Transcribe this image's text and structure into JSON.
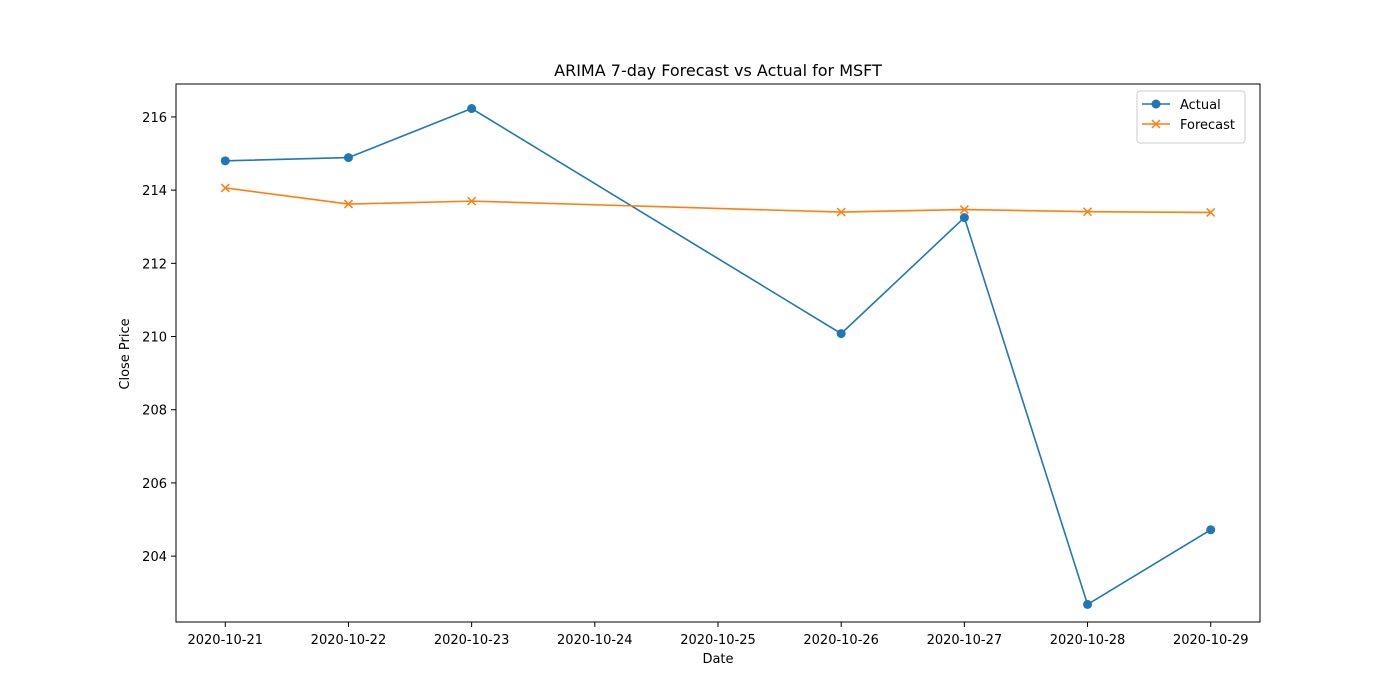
{
  "chart_data": {
    "type": "line",
    "title": "ARIMA 7-day Forecast vs Actual for MSFT",
    "xlabel": "Date",
    "ylabel": "Close Price",
    "x_ticks": [
      "2020-10-21",
      "2020-10-22",
      "2020-10-23",
      "2020-10-24",
      "2020-10-25",
      "2020-10-26",
      "2020-10-27",
      "2020-10-28",
      "2020-10-29"
    ],
    "y_ticks": [
      204,
      206,
      208,
      210,
      212,
      214,
      216
    ],
    "ylim": [
      202.2,
      216.9
    ],
    "xlim": [
      "2020-10-20.6",
      "2020-10-29.4"
    ],
    "grid": false,
    "legend_position": "top-right",
    "series": [
      {
        "name": "Actual",
        "color": "#1f77b4",
        "marker": "circle",
        "x": [
          "2020-10-21",
          "2020-10-22",
          "2020-10-23",
          "2020-10-26",
          "2020-10-27",
          "2020-10-28",
          "2020-10-29"
        ],
        "values": [
          214.8,
          214.89,
          216.23,
          210.08,
          213.25,
          202.68,
          204.72
        ]
      },
      {
        "name": "Forecast",
        "color": "#ff7f0e",
        "marker": "x",
        "x": [
          "2020-10-21",
          "2020-10-22",
          "2020-10-23",
          "2020-10-26",
          "2020-10-27",
          "2020-10-28",
          "2020-10-29"
        ],
        "values": [
          214.06,
          213.62,
          213.7,
          213.4,
          213.47,
          213.41,
          213.39
        ]
      }
    ]
  }
}
